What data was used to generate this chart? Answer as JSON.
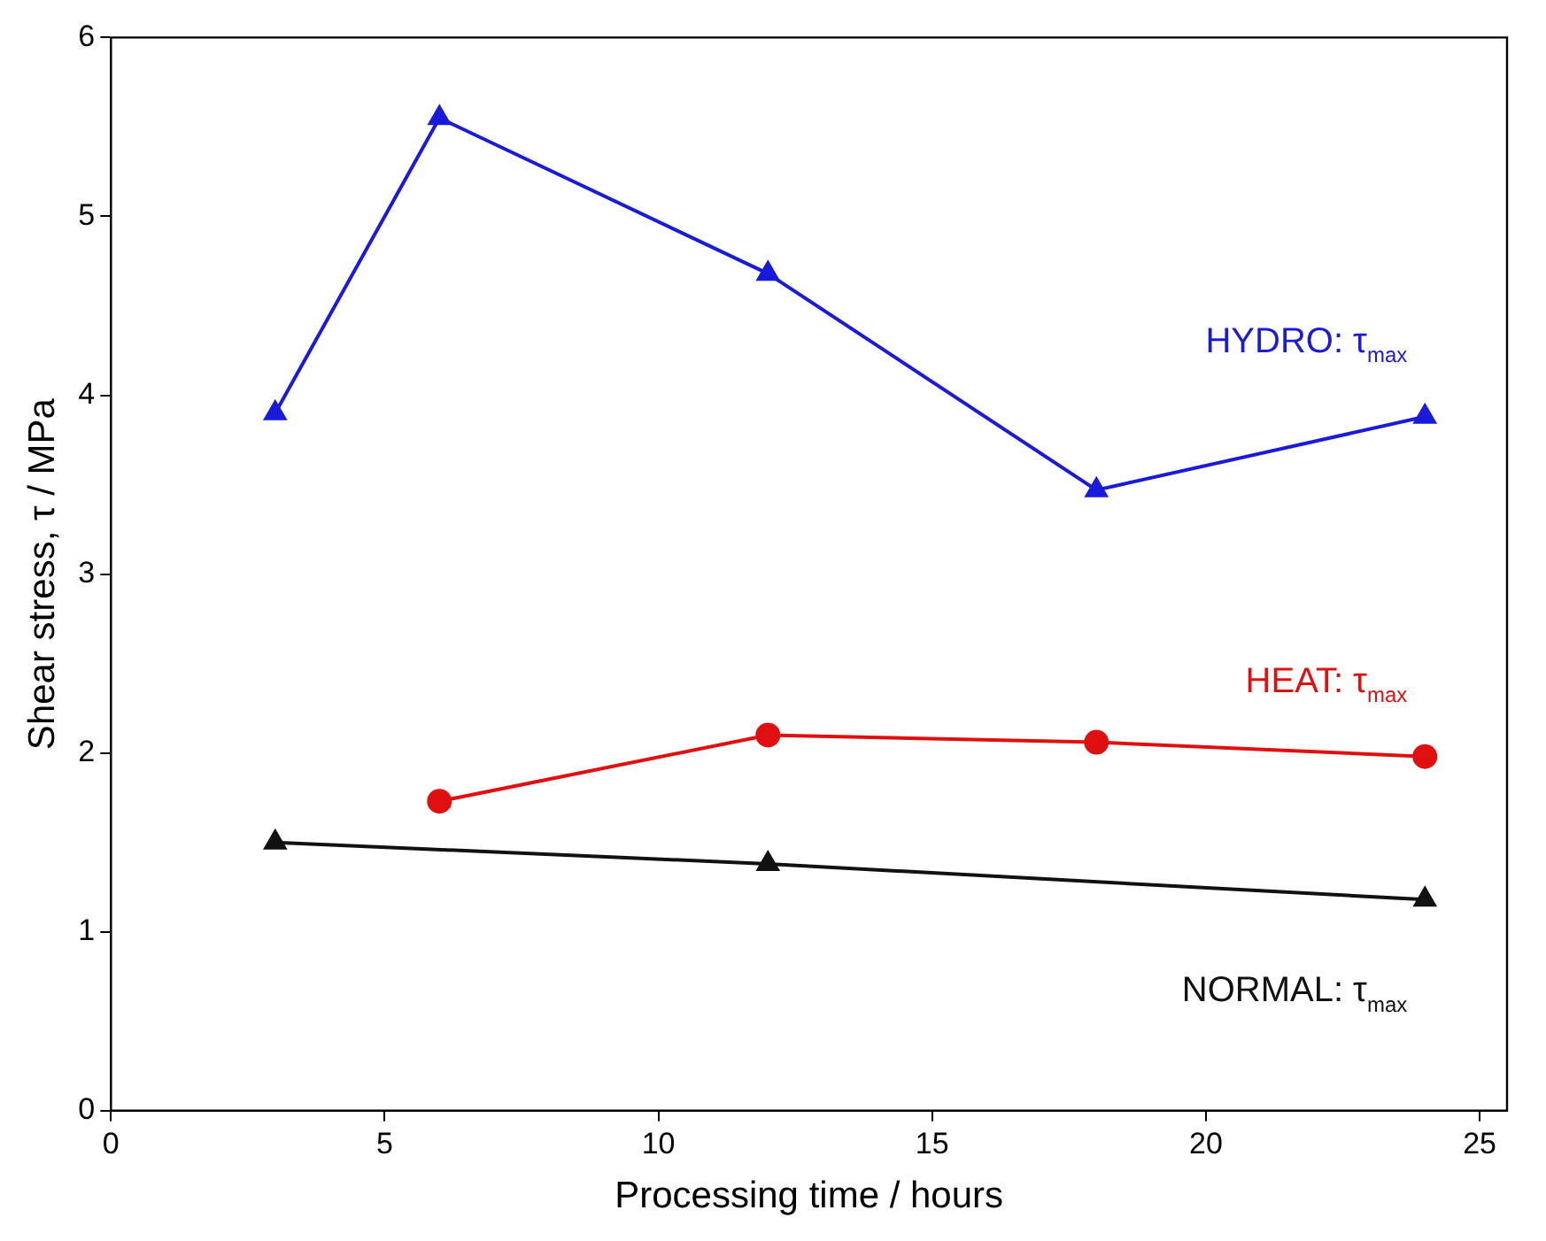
{
  "chart_data": {
    "type": "line",
    "xlabel": "Processing time / hours",
    "ylabel": "Shear stress, τ / MPa",
    "xlim": [
      0,
      25.5
    ],
    "xticks": [
      0,
      5,
      10,
      15,
      20,
      25
    ],
    "ylim": [
      0,
      6
    ],
    "yticks": [
      0,
      1,
      2,
      3,
      4,
      5,
      6
    ],
    "grid": false,
    "legend": false,
    "line_style": "solid",
    "series": [
      {
        "name": "HYDRO: τ$_{max}$",
        "color": "#1a1adc",
        "marker": "triangle",
        "x": [
          3,
          6,
          12,
          18,
          24
        ],
        "values": [
          3.9,
          5.55,
          4.68,
          3.47,
          3.88
        ]
      },
      {
        "name": "HEAT: τ$_{max}$",
        "color": "#e01010",
        "marker": "circle",
        "x": [
          6,
          12,
          18,
          24
        ],
        "values": [
          1.73,
          2.1,
          2.06,
          1.98
        ]
      },
      {
        "name": "NORMAL: τ$_{max}$",
        "color": "#111111",
        "marker": "triangle",
        "x": [
          3,
          12,
          24
        ],
        "values": [
          1.5,
          1.38,
          1.18
        ]
      }
    ]
  }
}
